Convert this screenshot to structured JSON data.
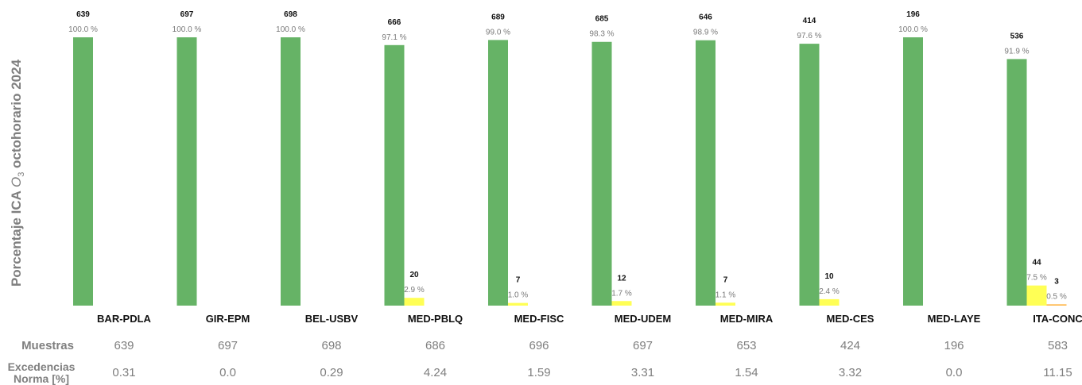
{
  "chart_data": {
    "type": "bar",
    "ylabel_prefix": "Porcentaje ICA ",
    "ylabel_species": "O",
    "ylabel_sub": "3",
    "ylabel_suffix": " octohorario 2024",
    "categories": [
      "BAR-PDLA",
      "GIR-EPM",
      "BEL-USBV",
      "MED-PBLQ",
      "MED-FISC",
      "MED-UDEM",
      "MED-MIRA",
      "MED-CES",
      "MED-LAYE",
      "ITA-CONC"
    ],
    "series": [
      {
        "color": "#66b366",
        "counts": [
          639,
          697,
          698,
          666,
          689,
          685,
          646,
          414,
          196,
          536
        ],
        "percent_labels": [
          "100.0 %",
          "100.0 %",
          "100.0 %",
          "97.1 %",
          "99.0 %",
          "98.3 %",
          "98.9 %",
          "97.6 %",
          "100.0 %",
          "91.9 %"
        ],
        "values": [
          100.0,
          100.0,
          100.0,
          97.1,
          99.0,
          98.3,
          98.9,
          97.6,
          100.0,
          91.9
        ]
      },
      {
        "color": "#ffff55",
        "counts": [
          null,
          null,
          null,
          20,
          7,
          12,
          7,
          10,
          null,
          44
        ],
        "percent_labels": [
          null,
          null,
          null,
          "2.9 %",
          "1.0 %",
          "1.7 %",
          "1.1 %",
          "2.4 %",
          null,
          "7.5 %"
        ],
        "values": [
          null,
          null,
          null,
          2.9,
          1.0,
          1.7,
          1.1,
          2.4,
          null,
          7.5
        ]
      },
      {
        "color": "#ffb84d",
        "counts": [
          null,
          null,
          null,
          null,
          null,
          null,
          null,
          null,
          null,
          3
        ],
        "percent_labels": [
          null,
          null,
          null,
          null,
          null,
          null,
          null,
          null,
          null,
          "0.5 %"
        ],
        "values": [
          null,
          null,
          null,
          null,
          null,
          null,
          null,
          null,
          null,
          0.5
        ]
      }
    ],
    "ylim": [
      0,
      100
    ],
    "grid": false,
    "table": {
      "row1_label": "Muestras",
      "row2_label_line1": "Excedencias",
      "row2_label_line2": "Norma [%]",
      "muestras": [
        "639",
        "697",
        "698",
        "686",
        "696",
        "697",
        "653",
        "424",
        "196",
        "583"
      ],
      "excedencias": [
        "0.31",
        "0.0",
        "0.29",
        "4.24",
        "1.59",
        "3.31",
        "1.54",
        "3.32",
        "0.0",
        "11.15"
      ]
    }
  }
}
